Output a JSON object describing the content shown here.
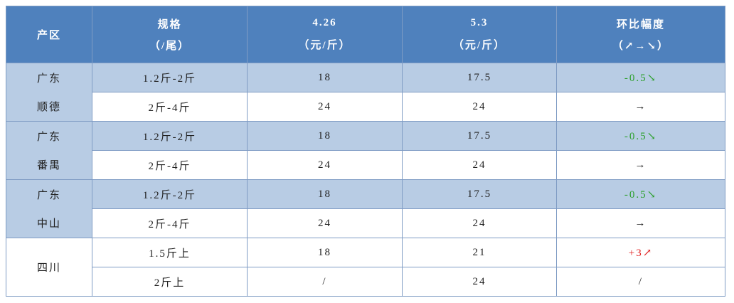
{
  "header": {
    "region": "产区",
    "columns": [
      [
        "规格",
        "（/尾）"
      ],
      [
        "4.26",
        "（元/斤）"
      ],
      [
        "5.3",
        "（元/斤）"
      ],
      [
        "环比幅度",
        "（↗→↘）"
      ]
    ]
  },
  "groups": [
    {
      "region": [
        "广东",
        "顺德"
      ],
      "rows": [
        [
          "1.2斤-2斤",
          "18",
          "17.5",
          "-0.5↘"
        ],
        [
          "2斤-4斤",
          "24",
          "24",
          "→"
        ]
      ]
    },
    {
      "region": [
        "广东",
        "番禺"
      ],
      "rows": [
        [
          "1.2斤-2斤",
          "18",
          "17.5",
          "-0.5↘"
        ],
        [
          "2斤-4斤",
          "24",
          "24",
          "→"
        ]
      ]
    },
    {
      "region": [
        "广东",
        "中山"
      ],
      "rows": [
        [
          "1.2斤-2斤",
          "18",
          "17.5",
          "-0.5↘"
        ],
        [
          "2斤-4斤",
          "24",
          "24",
          "→"
        ]
      ]
    },
    {
      "region": [
        "四川"
      ],
      "rows": [
        [
          "1.5斤上",
          "18",
          "21",
          "+3↗"
        ],
        [
          "2斤上",
          "/",
          "24",
          "/"
        ]
      ]
    }
  ]
}
